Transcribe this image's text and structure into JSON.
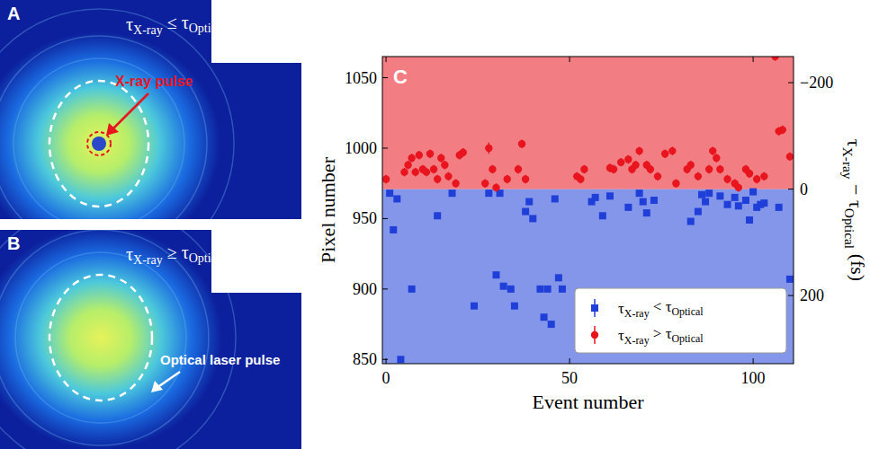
{
  "panels": [
    {
      "letter": "A",
      "title": "τX-ray ≤ τOptical",
      "annotation": "X-ray pulse"
    },
    {
      "letter": "B",
      "title": "τX-ray ≥ τOptical",
      "annotation": "Optical laser pulse"
    }
  ],
  "chart_data": {
    "type": "scatter",
    "panel_letter": "C",
    "x_label": "Event number",
    "y_label": "Pixel number",
    "y2_label": "τX-ray − τOptical (fs)",
    "xlim": [
      -1,
      111
    ],
    "xticks": [
      0,
      50,
      100
    ],
    "ylim": [
      847,
      1065
    ],
    "yticks": [
      850,
      900,
      950,
      1000,
      1050
    ],
    "y2lim": [
      328,
      -249
    ],
    "y2ticks": [
      {
        "value": -200,
        "label": "−200"
      },
      0,
      200
    ],
    "grid": false,
    "legend": "lower right",
    "series": [
      {
        "name": "τX-ray < τOptical",
        "color": "#1f3fd8",
        "marker": "square",
        "x": [
          1,
          2,
          3,
          4,
          7,
          14,
          18,
          24,
          28,
          30,
          31,
          32,
          34,
          35,
          38,
          39,
          40,
          42,
          43,
          44,
          45,
          46,
          47,
          48,
          56,
          57,
          59,
          61,
          66,
          69,
          70,
          71,
          73,
          83,
          85,
          86,
          87,
          88,
          91,
          93,
          95,
          96,
          98,
          99,
          100,
          101,
          102,
          103,
          107,
          110
        ],
        "values": [
          968,
          942,
          964,
          850,
          900,
          952,
          968,
          888,
          968,
          910,
          968,
          902,
          900,
          888,
          955,
          962,
          950,
          900,
          880,
          900,
          875,
          964,
          908,
          900,
          962,
          965,
          952,
          966,
          958,
          968,
          962,
          954,
          963,
          948,
          955,
          967,
          962,
          968,
          966,
          960,
          965,
          959,
          963,
          949,
          969,
          958,
          960,
          961,
          958,
          907
        ],
        "errors": [
          2,
          2,
          2,
          2,
          2,
          2,
          2,
          2,
          2,
          2,
          2,
          2,
          2,
          2,
          2,
          2,
          2,
          2,
          2,
          2,
          2,
          2,
          2,
          2,
          2,
          2,
          2,
          2,
          2,
          2,
          2,
          2,
          2,
          2,
          2,
          2,
          2,
          2,
          2,
          2,
          2,
          2,
          2,
          2,
          2,
          2,
          2,
          2,
          2,
          2
        ]
      },
      {
        "name": "τX-ray > τOptical",
        "color": "#e8141e",
        "marker": "circle",
        "x": [
          0,
          5,
          6,
          7,
          8,
          9,
          10,
          11,
          12,
          13,
          14,
          15,
          16,
          17,
          19,
          20,
          21,
          27,
          28,
          29,
          30,
          33,
          36,
          37,
          38,
          52,
          53,
          54,
          61,
          62,
          64,
          66,
          67,
          68,
          69,
          71,
          72,
          74,
          76,
          78,
          79,
          82,
          83,
          85,
          88,
          89,
          90,
          91,
          93,
          95,
          96,
          98,
          99,
          101,
          103,
          106,
          107,
          108,
          110
        ],
        "values": [
          978,
          983,
          988,
          993,
          983,
          995,
          985,
          983,
          996,
          985,
          978,
          993,
          988,
          980,
          975,
          995,
          997,
          975,
          1000,
          985,
          972,
          978,
          985,
          1003,
          978,
          980,
          978,
          985,
          986,
          985,
          990,
          992,
          985,
          988,
          998,
          988,
          985,
          980,
          996,
          998,
          975,
          985,
          988,
          980,
          985,
          998,
          993,
          985,
          978,
          975,
          972,
          985,
          982,
          978,
          980,
          1065,
          1012,
          1013,
          994
        ],
        "errors": [
          3,
          3,
          3,
          3,
          3,
          3,
          3,
          3,
          3,
          3,
          3,
          3,
          3,
          3,
          3,
          3,
          3,
          3,
          4,
          3,
          3,
          3,
          3,
          3,
          3,
          3,
          3,
          3,
          3,
          3,
          3,
          3,
          3,
          3,
          3,
          3,
          3,
          3,
          3,
          3,
          3,
          3,
          3,
          3,
          3,
          3,
          3,
          3,
          3,
          3,
          3,
          3,
          3,
          3,
          3,
          3,
          3,
          3,
          3
        ]
      }
    ]
  }
}
